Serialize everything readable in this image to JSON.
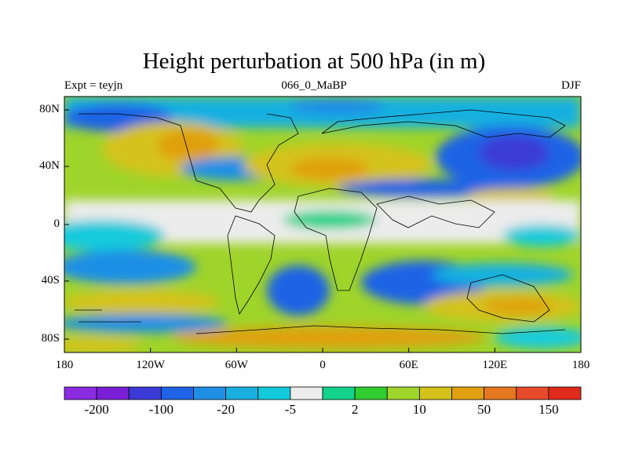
{
  "title": "Height perturbation at 500 hPa (in m)",
  "left_string": "Expt = teyjn",
  "center_string": "066_0_MaBP",
  "right_string": "DJF",
  "map": {
    "lon_ticks": [
      "180",
      "120W",
      "60W",
      "0",
      "60E",
      "120E",
      "180"
    ],
    "lat_ticks": [
      "80N",
      "40N",
      "0",
      "40S",
      "80S"
    ]
  },
  "colorbar": {
    "colors": [
      "#8a2be2",
      "#7a1fd6",
      "#3a3ad6",
      "#1f63e6",
      "#1f8fe6",
      "#19b0e0",
      "#13cadc",
      "#ececec",
      "#13d28a",
      "#2fcd2f",
      "#9fd42a",
      "#d4c21a",
      "#e0a010",
      "#e6781f",
      "#e54b2a",
      "#e02a1a"
    ],
    "labels": [
      "-200",
      "-100",
      "-20",
      "-5",
      "2",
      "10",
      "50",
      "150"
    ]
  }
}
